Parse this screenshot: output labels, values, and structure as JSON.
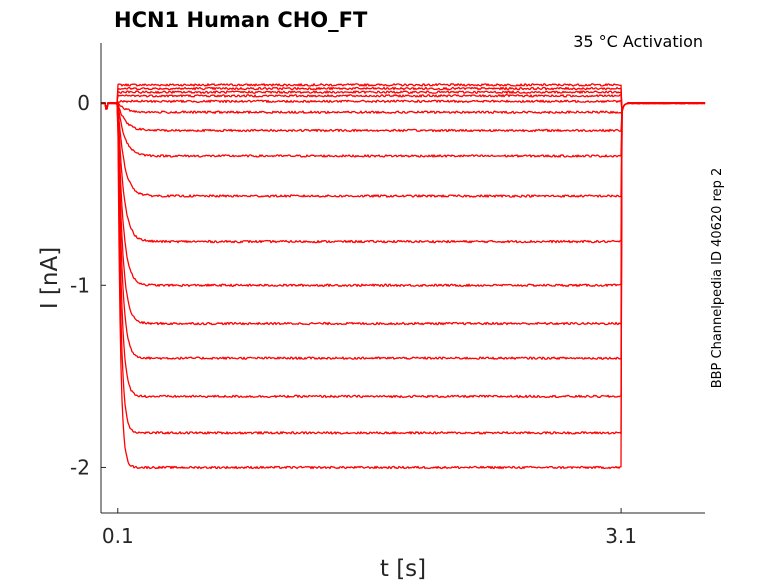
{
  "chart_data": {
    "type": "line",
    "title": "HCN1  Human  CHO_FT",
    "annotation": "35 °C  Activation",
    "side_label": "BBP Channelpedia ID 40620 rep 2",
    "xlabel": "t [s]",
    "ylabel": "I [nA]",
    "xlim": [
      0.0,
      3.6
    ],
    "ylim": [
      -2.25,
      0.33
    ],
    "xticks": [
      {
        "value": 0.1,
        "label": "0.1"
      },
      {
        "value": 3.1,
        "label": "3.1"
      }
    ],
    "yticks": [
      {
        "value": 0,
        "label": "0"
      },
      {
        "value": -1,
        "label": "-1"
      },
      {
        "value": -2,
        "label": "-2"
      }
    ],
    "grid": false,
    "color": "#ff0000",
    "step_start_s": 0.1,
    "step_end_s": 3.1,
    "baseline_nA": 0.0,
    "steady_state_nA": [
      0.1,
      0.08,
      0.06,
      0.04,
      0.01,
      -0.05,
      -0.15,
      -0.29,
      -0.51,
      -0.76,
      -1.0,
      -1.21,
      -1.4,
      -1.61,
      -1.81,
      -2.0
    ]
  }
}
